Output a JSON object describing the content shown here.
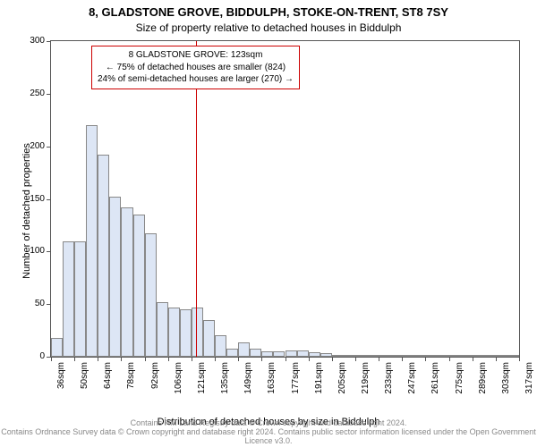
{
  "title_main": "8, GLADSTONE GROVE, BIDDULPH, STOKE-ON-TRENT, ST8 7SY",
  "title_sub": "Size of property relative to detached houses in Biddulph",
  "y_label": "Number of detached properties",
  "x_label": "Distribution of detached houses by size in Biddulph",
  "footer": {
    "line1": "Contains HM Land Registry data © Crown copyright and database right 2024.",
    "line2": "Contains Ordnance Survey data © Crown copyright and database right 2024. Contains public sector information licensed under the Open Government Licence v3.0."
  },
  "chart": {
    "type": "histogram",
    "background_color": "#ffffff",
    "bar_fill": "#dde6f5",
    "bar_border": "#888888",
    "axis_color": "#555555",
    "ref_line_color": "#cc0000",
    "ylim": [
      0,
      300
    ],
    "ytick_step": 50,
    "y_ticks": [
      0,
      50,
      100,
      150,
      200,
      250,
      300
    ],
    "x_ticks": [
      "36sqm",
      "50sqm",
      "64sqm",
      "78sqm",
      "92sqm",
      "106sqm",
      "121sqm",
      "135sqm",
      "149sqm",
      "163sqm",
      "177sqm",
      "191sqm",
      "205sqm",
      "219sqm",
      "233sqm",
      "247sqm",
      "261sqm",
      "275sqm",
      "289sqm",
      "303sqm",
      "317sqm"
    ],
    "values": [
      18,
      110,
      110,
      220,
      192,
      152,
      142,
      135,
      117,
      52,
      47,
      45,
      47,
      35,
      20,
      8,
      14,
      8,
      5,
      5,
      6,
      6,
      4,
      3,
      2,
      2,
      2,
      2,
      2,
      2,
      2,
      2,
      2,
      2,
      2,
      2,
      2,
      2,
      2,
      2
    ],
    "reference_line_bin": 12,
    "annotation_box": {
      "line1": "8 GLADSTONE GROVE: 123sqm",
      "line2": "← 75% of detached houses are smaller (824)",
      "line3": "24% of semi-detached houses are larger (270) →"
    }
  }
}
